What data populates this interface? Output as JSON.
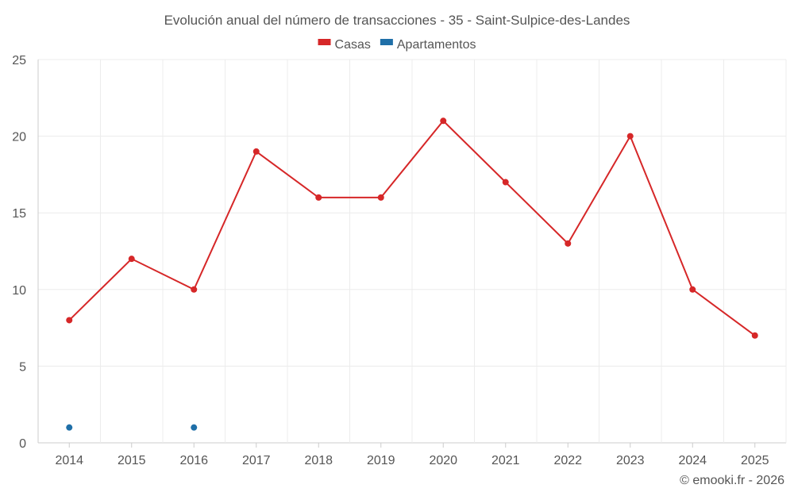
{
  "chart_data": {
    "type": "line",
    "title": "Evolución anual del número de transacciones - 35 - Saint-Sulpice-des-Landes",
    "categories": [
      "2014",
      "2015",
      "2016",
      "2017",
      "2018",
      "2019",
      "2020",
      "2021",
      "2022",
      "2023",
      "2024",
      "2025"
    ],
    "series": [
      {
        "name": "Casas",
        "color": "#d62728",
        "values": [
          8,
          12,
          10,
          19,
          16,
          16,
          21,
          17,
          13,
          20,
          10,
          7
        ]
      },
      {
        "name": "Apartamentos",
        "color": "#1f6fa8",
        "values": [
          1,
          null,
          1,
          null,
          null,
          null,
          null,
          null,
          null,
          null,
          null,
          null
        ]
      }
    ],
    "ylim": [
      0,
      25
    ],
    "yticks": [
      0,
      5,
      10,
      15,
      20,
      25
    ],
    "xlabel": "",
    "ylabel": "",
    "legend_position": "top-center",
    "grid": true
  },
  "credit": "© emooki.fr - 2026"
}
